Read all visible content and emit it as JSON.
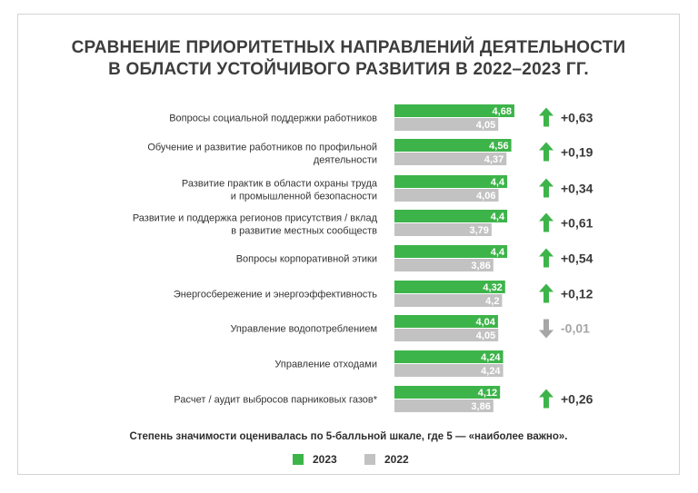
{
  "title": {
    "line1": "СРАВНЕНИЕ ПРИОРИТЕТНЫХ НАПРАВЛЕНИЙ ДЕЯТЕЛЬНОСТИ",
    "line2": "В ОБЛАСТИ  УСТОЙЧИВОГО РАЗВИТИЯ В 2022–2023 ГГ."
  },
  "colors": {
    "y2023": "#3db44a",
    "y2022": "#c2c2c2",
    "up": "#3db44a",
    "down": "#a6a6a6"
  },
  "chart_data": {
    "type": "bar",
    "orientation": "horizontal",
    "title": "СРАВНЕНИЕ ПРИОРИТЕТНЫХ НАПРАВЛЕНИЙ ДЕЯТЕЛЬНОСТИ В ОБЛАСТИ  УСТОЙЧИВОГО РАЗВИТИЯ В 2022–2023 ГГ.",
    "xlim": [
      0,
      5
    ],
    "categories": [
      [
        "Вопросы социальной поддержки работников"
      ],
      [
        "Обучение и развитие работников по профильной",
        "деятельности"
      ],
      [
        "Развитие практик в области охраны труда",
        "и промышленной безопасности"
      ],
      [
        "Развитие и поддержка регионов присутствия / вклад",
        "в развитие местных сообществ"
      ],
      [
        "Вопросы корпоративной этики"
      ],
      [
        "Энергосбережение и энергоэффективность"
      ],
      [
        "Управление водопотреблением"
      ],
      [
        "Управление отходами"
      ],
      [
        "Расчет / аудит выбросов парниковых газов*"
      ]
    ],
    "series": [
      {
        "name": "2023",
        "values": [
          4.68,
          4.56,
          4.4,
          4.4,
          4.4,
          4.32,
          4.04,
          4.24,
          4.12
        ],
        "labels": [
          "4,68",
          "4,56",
          "4,4",
          "4,4",
          "4,4",
          "4,32",
          "4,04",
          "4,24",
          "4,12"
        ]
      },
      {
        "name": "2022",
        "values": [
          4.05,
          4.37,
          4.06,
          3.79,
          3.86,
          4.2,
          4.05,
          4.24,
          3.86
        ],
        "labels": [
          "4,05",
          "4,37",
          "4,06",
          "3,79",
          "3,86",
          "4,2",
          "4,05",
          "4,24",
          "3,86"
        ]
      }
    ],
    "changes": [
      {
        "direction": "up",
        "label": "+0,63"
      },
      {
        "direction": "up",
        "label": "+0,19"
      },
      {
        "direction": "up",
        "label": "+0,34"
      },
      {
        "direction": "up",
        "label": "+0,61"
      },
      {
        "direction": "up",
        "label": "+0,54"
      },
      {
        "direction": "up",
        "label": "+0,12"
      },
      {
        "direction": "down",
        "label": "-0,01"
      },
      null,
      {
        "direction": "up",
        "label": "+0,26"
      }
    ]
  },
  "footnote": "Степень значимости оценивалась по 5-балльной шкале, где 5 — «наиболее важно».",
  "legend": [
    "2023",
    "2022"
  ]
}
